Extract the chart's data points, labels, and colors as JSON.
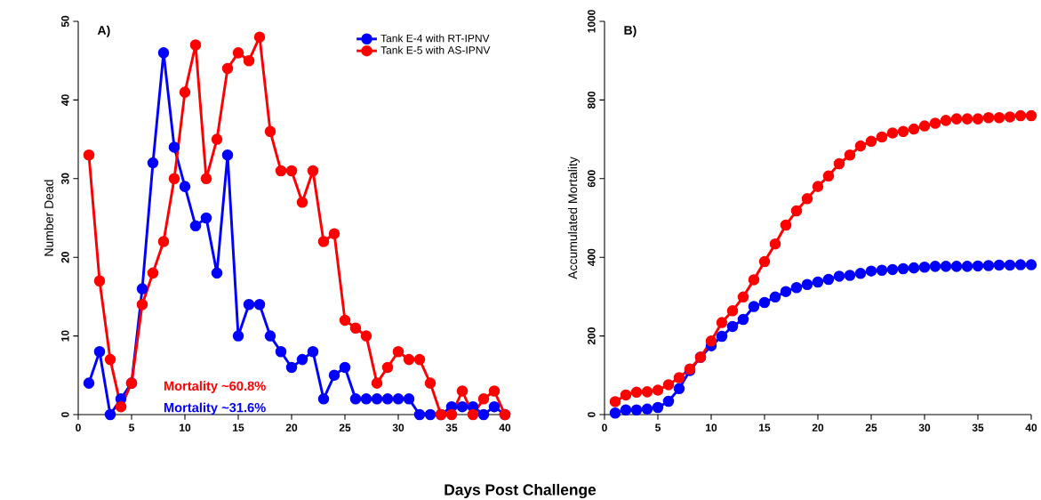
{
  "chart_data": [
    {
      "type": "line",
      "title": "A)",
      "xlabel": "Days Post Challenge",
      "ylabel": "Number Dead",
      "x": [
        1,
        2,
        3,
        4,
        5,
        6,
        7,
        8,
        9,
        10,
        11,
        12,
        13,
        14,
        15,
        16,
        17,
        18,
        19,
        20,
        21,
        22,
        23,
        24,
        25,
        26,
        27,
        28,
        29,
        30,
        31,
        32,
        33,
        34,
        35,
        36,
        37,
        38,
        39,
        40
      ],
      "series": [
        {
          "name": "Tank E-4 with RT-IPNV",
          "color": "#0000ff",
          "values": [
            4,
            8,
            0,
            2,
            4,
            16,
            32,
            46,
            34,
            29,
            24,
            25,
            18,
            33,
            10,
            14,
            14,
            10,
            8,
            6,
            7,
            8,
            2,
            5,
            6,
            2,
            2,
            2,
            2,
            2,
            2,
            0,
            0,
            0,
            1,
            1,
            1,
            0,
            1,
            0
          ]
        },
        {
          "name": "Tank E-5 with AS-IPNV",
          "color": "#ff0000",
          "values": [
            33,
            17,
            7,
            1,
            4,
            14,
            18,
            22,
            30,
            41,
            47,
            30,
            35,
            44,
            46,
            45,
            48,
            36,
            31,
            31,
            27,
            31,
            22,
            23,
            12,
            11,
            10,
            4,
            6,
            8,
            7,
            7,
            4,
            0,
            0,
            3,
            0,
            2,
            3,
            0
          ]
        }
      ],
      "annotations": [
        "Mortality ~60.8%",
        "Mortality ~31.6%"
      ],
      "xlim": [
        0,
        40
      ],
      "xticks": [
        0,
        5,
        10,
        15,
        20,
        25,
        30,
        35,
        40
      ],
      "ylim": [
        0,
        50
      ],
      "yticks": [
        0,
        10,
        20,
        30,
        40,
        50
      ],
      "legend": "top right",
      "marker": "circle",
      "line_style": "solid",
      "grid": false
    },
    {
      "type": "line",
      "title": "B)",
      "ylabel": "Accumulated Mortality",
      "x": [
        1,
        2,
        3,
        4,
        5,
        6,
        7,
        8,
        9,
        10,
        11,
        12,
        13,
        14,
        15,
        16,
        17,
        18,
        19,
        20,
        21,
        22,
        23,
        24,
        25,
        26,
        27,
        28,
        29,
        30,
        31,
        32,
        33,
        34,
        35,
        36,
        37,
        38,
        39,
        40
      ],
      "series": [
        {
          "color": "#0000ff",
          "values": [
            4,
            12,
            12,
            14,
            18,
            34,
            66,
            112,
            146,
            175,
            199,
            224,
            242,
            275,
            285,
            299,
            313,
            323,
            331,
            337,
            344,
            352,
            354,
            359,
            365,
            367,
            369,
            371,
            373,
            375,
            377,
            377,
            377,
            377,
            378,
            379,
            380,
            380,
            381,
            381
          ]
        },
        {
          "color": "#ff0000",
          "values": [
            33,
            50,
            57,
            58,
            62,
            76,
            94,
            116,
            146,
            187,
            234,
            264,
            299,
            343,
            389,
            434,
            482,
            518,
            549,
            580,
            607,
            638,
            660,
            683,
            695,
            706,
            716,
            720,
            726,
            734,
            741,
            748,
            752,
            752,
            752,
            755,
            755,
            757,
            760,
            760
          ]
        }
      ],
      "xlim": [
        0,
        40
      ],
      "xticks": [
        0,
        5,
        10,
        15,
        20,
        25,
        30,
        35,
        40
      ],
      "ylim": [
        0,
        1000
      ],
      "yticks": [
        0,
        200,
        400,
        600,
        800,
        1000
      ],
      "legend": false,
      "marker": "circle",
      "line_style": "solid",
      "grid": false
    }
  ]
}
